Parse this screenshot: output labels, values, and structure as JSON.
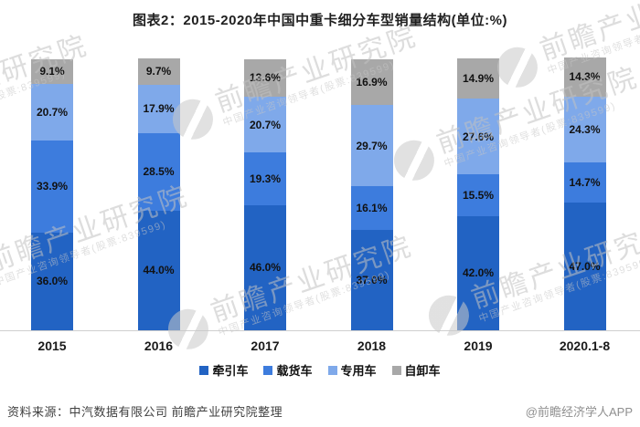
{
  "chart_data": {
    "type": "bar",
    "stacked": true,
    "title": "图表2：2015-2020年中国中重卡细分车型销量结构(单位:%)",
    "categories": [
      "2015",
      "2016",
      "2017",
      "2018",
      "2019",
      "2020.1-8"
    ],
    "series": [
      {
        "name": "牵引车",
        "color": "#2263c3",
        "values": [
          36.0,
          44.0,
          46.0,
          37.0,
          42.0,
          47.0
        ]
      },
      {
        "name": "载货车",
        "color": "#3d7cdd",
        "values": [
          33.9,
          28.5,
          19.3,
          16.1,
          15.5,
          14.7
        ]
      },
      {
        "name": "专用车",
        "color": "#7fa9ea",
        "values": [
          20.7,
          17.9,
          20.7,
          29.7,
          27.6,
          24.3
        ]
      },
      {
        "name": "自卸车",
        "color": "#a8a8a8",
        "values": [
          9.1,
          9.7,
          13.6,
          16.9,
          14.9,
          14.3
        ]
      }
    ],
    "value_suffix": "%",
    "ylim": [
      0,
      100
    ],
    "grid": false,
    "legend_position": "bottom"
  },
  "footer": {
    "source": "资料来源：中汽数据有限公司 前瞻产业研究院整理",
    "credit": "@前瞻经济学人APP"
  },
  "watermark": {
    "main": "前瞻产业研究院",
    "sub": "中国产业咨询领导者(股票:839599)"
  }
}
